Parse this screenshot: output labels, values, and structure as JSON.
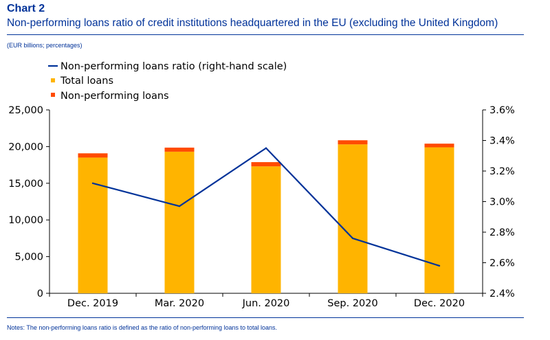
{
  "header": {
    "chart_label": "Chart 2",
    "title": "Non-performing loans ratio of credit institutions headquartered in the EU (excluding the United Kingdom)",
    "units": "(EUR billions; percentages)"
  },
  "footer": {
    "notes": "Notes: The non-performing loans ratio is defined as the ratio of non-performing loans to total loans."
  },
  "colors": {
    "title": "#003299",
    "total_loans": "#FFB400",
    "non_performing_loans": "#FF4B00",
    "ratio_line": "#003299",
    "axis": "#000000"
  },
  "chart_data": {
    "type": "bar",
    "categories": [
      "Dec. 2019",
      "Mar. 2020",
      "Jun. 2020",
      "Sep. 2020",
      "Dec. 2020"
    ],
    "series": [
      {
        "name": "Total loans",
        "type": "bar",
        "stacked": true,
        "axis": "left",
        "values": [
          18500,
          19300,
          17300,
          20300,
          19900
        ]
      },
      {
        "name": "Non-performing loans",
        "type": "bar",
        "stacked": true,
        "axis": "left",
        "values": [
          580,
          560,
          580,
          560,
          500
        ]
      },
      {
        "name": "Non-performing loans ratio (right-hand scale)",
        "type": "line",
        "axis": "right",
        "values": [
          3.12,
          2.97,
          3.35,
          2.76,
          2.58
        ]
      }
    ],
    "y_left": {
      "ylim": [
        0,
        25000
      ],
      "ticks": [
        0,
        5000,
        10000,
        15000,
        20000,
        25000
      ],
      "tick_labels": [
        "0",
        "5,000",
        "10,000",
        "15,000",
        "20,000",
        "25,000"
      ]
    },
    "y_right": {
      "ylim": [
        2.4,
        3.6
      ],
      "ticks": [
        2.4,
        2.6,
        2.8,
        3.0,
        3.2,
        3.4,
        3.6
      ],
      "tick_labels": [
        "2.4%",
        "2.6%",
        "2.8%",
        "3.0%",
        "3.2%",
        "3.4%",
        "3.6%"
      ]
    },
    "legend_position": "top-left",
    "grid": false
  }
}
